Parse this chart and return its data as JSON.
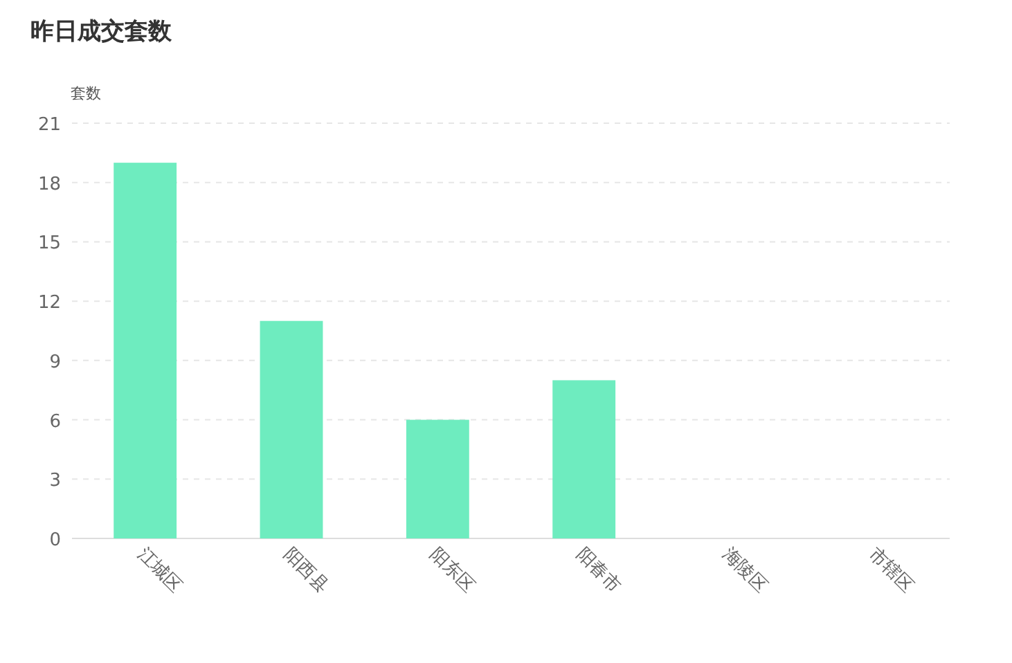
{
  "chart_data": {
    "type": "bar",
    "title": "昨日成交套数",
    "ylabel": "套数",
    "categories": [
      "江城区",
      "阳西县",
      "阳东区",
      "阳春市",
      "海陵区",
      "市辖区"
    ],
    "values": [
      19,
      11,
      6,
      8,
      0,
      0
    ],
    "color": "#6eecbf",
    "ylim": [
      0,
      21
    ],
    "yticks": [
      0,
      3,
      6,
      9,
      12,
      15,
      18,
      21
    ],
    "grid": "y"
  }
}
